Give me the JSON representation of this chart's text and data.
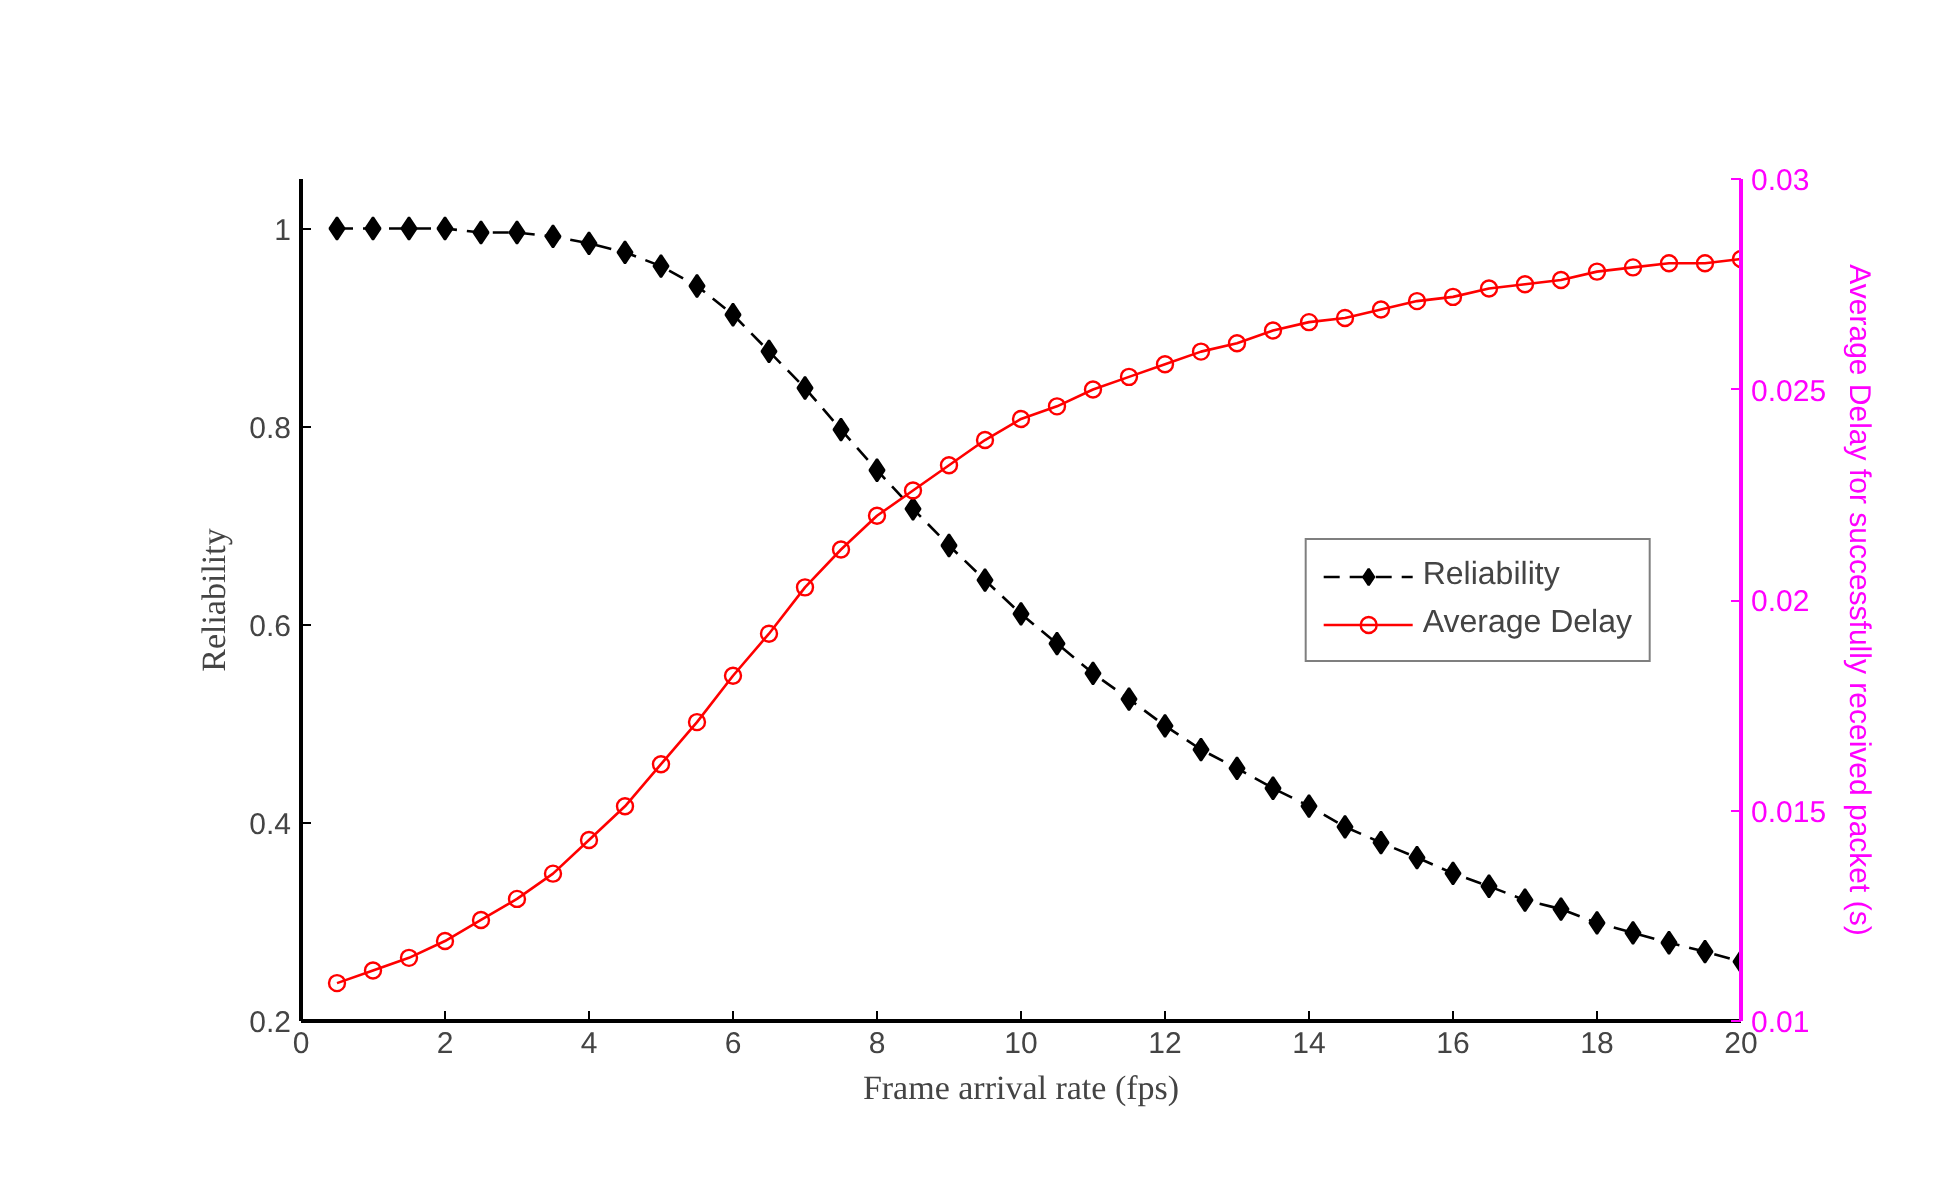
{
  "chart_data": {
    "type": "line",
    "xlabel": "Frame arrival rate (fps)",
    "ylabel": "Reliability",
    "y2label": "Average Delay for successfully received packet (s)",
    "x": [
      0.5,
      1,
      1.5,
      2,
      2.5,
      3,
      3.5,
      4,
      4.5,
      5,
      5.5,
      6,
      6.5,
      7,
      7.5,
      8,
      8.5,
      9,
      9.5,
      10,
      10.5,
      11,
      11.5,
      12,
      12.5,
      13,
      13.5,
      14,
      14.5,
      15,
      15.5,
      16,
      16.5,
      17,
      17.5,
      18,
      18.5,
      19,
      19.5,
      20
    ],
    "series": [
      {
        "name": "Reliability",
        "color": "#000000",
        "marker": "diamond",
        "line_style": "dashed",
        "values": [
          1.0,
          1.0,
          1.0,
          1.0,
          0.996,
          0.996,
          0.992,
          0.985,
          0.976,
          0.962,
          0.942,
          0.913,
          0.876,
          0.839,
          0.797,
          0.756,
          0.717,
          0.68,
          0.645,
          0.611,
          0.581,
          0.551,
          0.525,
          0.498,
          0.474,
          0.455,
          0.435,
          0.417,
          0.396,
          0.38,
          0.365,
          0.349,
          0.336,
          0.322,
          0.313,
          0.299,
          0.289,
          0.279,
          0.27,
          0.26
        ]
      },
      {
        "name": "Average Delay",
        "color": "#ff0000",
        "marker": "circle",
        "line_style": "solid",
        "axis": "y2",
        "values": [
          0.0109,
          0.0112,
          0.0115,
          0.0119,
          0.0124,
          0.0129,
          0.0135,
          0.0143,
          0.0151,
          0.0161,
          0.0171,
          0.0182,
          0.0192,
          0.0203,
          0.0212,
          0.022,
          0.0226,
          0.0232,
          0.0238,
          0.0243,
          0.0246,
          0.025,
          0.0253,
          0.0256,
          0.0259,
          0.0261,
          0.0264,
          0.0266,
          0.0267,
          0.0269,
          0.0271,
          0.0272,
          0.0274,
          0.0275,
          0.0276,
          0.0278,
          0.0279,
          0.028,
          0.028,
          0.0281
        ]
      }
    ],
    "xlim": [
      0,
      20
    ],
    "xticks": [
      0,
      2,
      4,
      6,
      8,
      10,
      12,
      14,
      16,
      18,
      20
    ],
    "ylim": [
      0.2,
      1.05
    ],
    "yticks": [
      0.2,
      0.4,
      0.6,
      0.8,
      1
    ],
    "y2lim": [
      0.01,
      0.03
    ],
    "y2ticks": [
      0.01,
      0.015,
      0.02,
      0.025,
      0.03
    ],
    "grid": false,
    "legend": "right"
  }
}
